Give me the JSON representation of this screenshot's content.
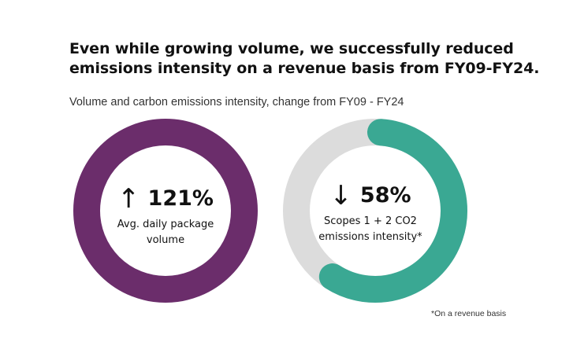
{
  "headline": "Even while growing volume, we successfully reduced emissions intensity on a revenue basis from FY09-FY24.",
  "subheadline": "Volume and carbon emissions intensity, change from FY09 - FY24",
  "footnote": "*On a revenue basis",
  "colors": {
    "volume_ring": "#6b2d6b",
    "emissions_ring": "#3aa893",
    "ring_track": "#dcdcdc"
  },
  "chart_data": [
    {
      "type": "pie",
      "variant": "donut",
      "direction": "up",
      "arrow_icon": "arrow-up-icon",
      "value": 121,
      "value_label": "121%",
      "label": "Avg. daily package volume",
      "fill_fraction": 1.0,
      "fill_color": "#6b2d6b"
    },
    {
      "type": "pie",
      "variant": "donut",
      "direction": "down",
      "arrow_icon": "arrow-down-icon",
      "value": -58,
      "value_label": "58%",
      "label": "Scopes 1 + 2 CO2 emissions intensity*",
      "fill_fraction": 0.58,
      "fill_color": "#3aa893",
      "track_color": "#dcdcdc"
    }
  ]
}
